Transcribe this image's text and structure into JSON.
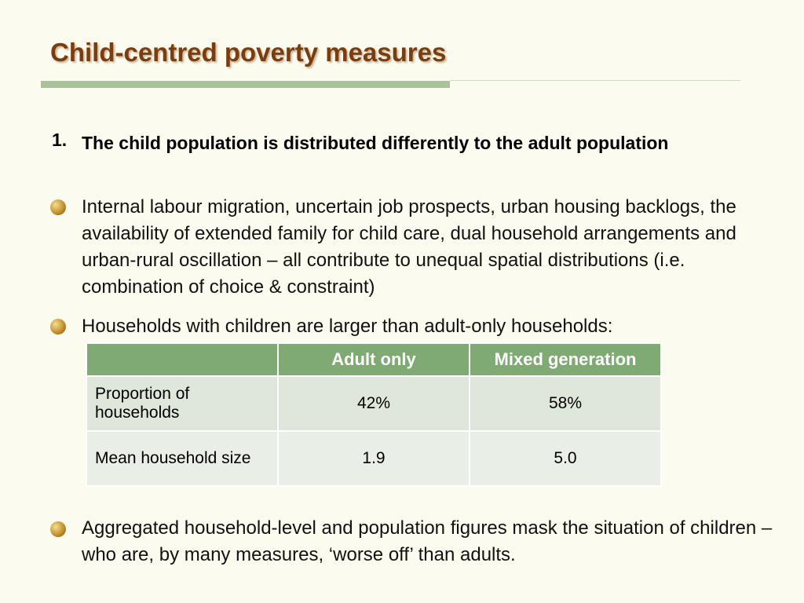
{
  "header": {
    "title": "Child-centred poverty measures"
  },
  "numbered": {
    "number": "1.",
    "text": "The child population is distributed differently to the adult population"
  },
  "bullets": [
    "Internal labour migration, uncertain job prospects, urban housing backlogs, the availability of extended family for child care, dual household arrangements and urban-rural oscillation – all contribute to unequal spatial distributions (i.e. combination of choice & constraint)",
    "Households with children are larger  than adult-only households:",
    "Aggregated household-level and population figures mask the situation of children – who are, by many measures, ‘worse off’ than adults."
  ],
  "table": {
    "header": [
      "",
      "Adult only",
      "Mixed generation"
    ],
    "rows": [
      [
        "Proportion of households",
        "42%",
        "58%"
      ],
      [
        "Mean household size",
        "1.9",
        "5.0"
      ]
    ]
  }
}
